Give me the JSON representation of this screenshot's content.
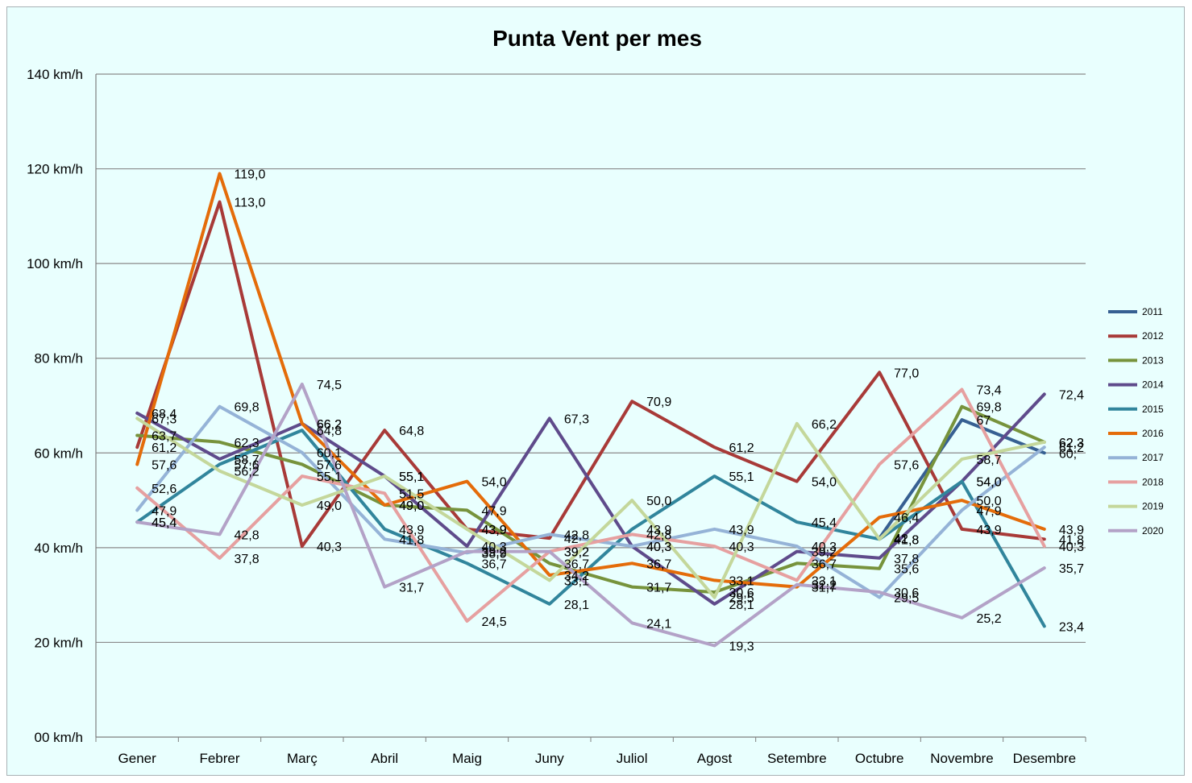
{
  "chart_data": {
    "type": "line",
    "title": "Punta Vent per mes",
    "xlabel": "",
    "ylabel": "",
    "ylim": [
      0,
      140
    ],
    "yticks": [
      "00 km/h",
      "20 km/h",
      "40 km/h",
      "60 km/h",
      "80 km/h",
      "100 km/h",
      "120 km/h",
      "140 km/h"
    ],
    "grid": true,
    "legend_position": "right",
    "categories": [
      "Gener",
      "Febrer",
      "Març",
      "Abril",
      "Maig",
      "Juny",
      "Juliol",
      "Agost",
      "Setembre",
      "Octubre",
      "Novembre",
      "Desembre"
    ],
    "series": [
      {
        "name": "2011",
        "color": "#376092",
        "values": [
          null,
          null,
          null,
          null,
          null,
          null,
          null,
          null,
          null,
          42.0,
          67.0,
          60.0
        ],
        "labels": [
          "",
          "",
          "",
          "",
          "",
          "",
          "",
          "",
          "",
          "42",
          "67",
          "60,"
        ]
      },
      {
        "name": "2012",
        "color": "#a83a38",
        "values": [
          61.2,
          113.0,
          40.3,
          64.8,
          43.9,
          42.0,
          70.9,
          61.2,
          54.0,
          77.0,
          43.9,
          41.8
        ],
        "labels": [
          "61,2",
          "113,0",
          "40,3",
          "64,8",
          "43,9",
          "42",
          "70,9",
          "61,2",
          "54,0",
          "77,0",
          "43,9",
          "41,8"
        ]
      },
      {
        "name": "2013",
        "color": "#77933c",
        "values": [
          63.7,
          62.3,
          57.6,
          49.0,
          47.9,
          36.7,
          31.7,
          30.6,
          36.7,
          35.6,
          69.8,
          62.3
        ],
        "labels": [
          "63,7",
          "62,3",
          "57,6",
          "49,0",
          "47,9",
          "36,7",
          "31,7",
          "30,6",
          "36,7",
          "35,6",
          "69,8",
          "62,3"
        ]
      },
      {
        "name": "2014",
        "color": "#5f4b8b",
        "values": [
          68.4,
          58.7,
          66.2,
          55.1,
          40.3,
          67.3,
          40.3,
          28.1,
          39.2,
          37.8,
          54.0,
          72.4
        ],
        "labels": [
          "68,4",
          "58,7",
          "66,2",
          "55,1",
          "40,3",
          "67,3",
          "40,3",
          "28,1",
          "39,2",
          "37,8",
          "54,0",
          "72,4"
        ]
      },
      {
        "name": "2015",
        "color": "#31859c",
        "values": [
          45.4,
          57.6,
          64.8,
          43.9,
          36.7,
          28.1,
          43.9,
          55.1,
          45.4,
          41.8,
          54.0,
          23.4
        ],
        "labels": [
          "45,4",
          "57,6",
          "64,8",
          "43,9",
          "36,7",
          "28,1",
          "43,9",
          "55,1",
          "45,4",
          "41,8",
          "54,0",
          "23,4"
        ]
      },
      {
        "name": "2016",
        "color": "#e46c0a",
        "values": [
          57.6,
          119.0,
          66.2,
          49.0,
          54.0,
          34.2,
          36.7,
          33.1,
          31.7,
          46.4,
          50.0,
          43.9
        ],
        "labels": [
          "57,6",
          "119,0",
          "66,2",
          "49,0",
          "54,0",
          "34,2",
          "36,7",
          "33,1",
          "31,7",
          "46,4",
          "50,0",
          "43,9"
        ]
      },
      {
        "name": "2017",
        "color": "#95b3d7",
        "values": [
          47.9,
          69.8,
          60.1,
          41.8,
          38.9,
          42.8,
          40.3,
          43.9,
          40.3,
          29.5,
          47.9,
          61.2
        ],
        "labels": [
          "47,9",
          "69,8",
          "60,1",
          "41,8",
          "38,9",
          "42,8",
          "40,3",
          "43,9",
          "40,3",
          "29,5",
          "47,9",
          "61,2"
        ]
      },
      {
        "name": "2018",
        "color": "#e6a0a0",
        "values": [
          52.6,
          37.8,
          55.1,
          51.5,
          24.5,
          39.2,
          42.8,
          40.3,
          33.1,
          57.6,
          73.4,
          40.3
        ],
        "labels": [
          "52,6",
          "37,8",
          "55,1",
          "51,5",
          "24,5",
          "39,2",
          "42,8",
          "40,3",
          "33,1",
          "57,6",
          "73,4",
          "40,3"
        ]
      },
      {
        "name": "2019",
        "color": "#c4d79b",
        "values": [
          67.3,
          56.2,
          49.0,
          55.1,
          43.9,
          33.1,
          50.0,
          29.5,
          66.2,
          41.8,
          58.7,
          62.3
        ],
        "labels": [
          "67,3",
          "56,2",
          "49,0",
          "55,1",
          "43,9",
          "33,1",
          "50,0",
          "29,5",
          "66,2",
          "41,8",
          "58,7",
          "62,3"
        ]
      },
      {
        "name": "2020",
        "color": "#b3a2c7",
        "values": [
          45.4,
          42.8,
          74.5,
          31.7,
          39.2,
          39.2,
          24.1,
          19.3,
          32.2,
          30.6,
          25.2,
          35.7
        ],
        "labels": [
          "45,4",
          "42,8",
          "74,5",
          "31,7",
          "39,2",
          "39,2",
          "24,1",
          "19,3",
          "32,2",
          "30,6",
          "25,2",
          "35,7"
        ]
      }
    ]
  }
}
